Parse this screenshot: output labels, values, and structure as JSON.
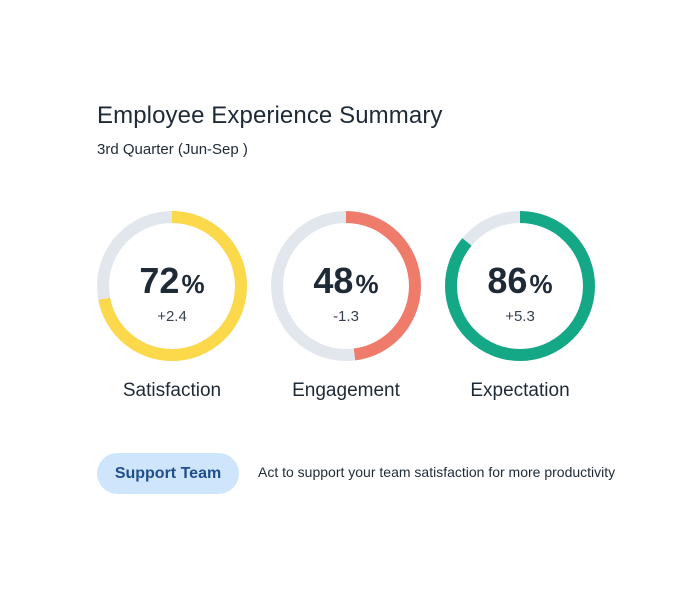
{
  "header": {
    "title": "Employee Experience Summary",
    "subtitle": "3rd Quarter (Jun-Sep )"
  },
  "metrics": [
    {
      "label": "Satisfaction",
      "value": "72",
      "unit": "%",
      "delta": "+2.4",
      "progress": 0.72,
      "color": "#fcd94a"
    },
    {
      "label": "Engagement",
      "value": "48",
      "unit": "%",
      "delta": "-1.3",
      "progress": 0.48,
      "color": "#ef7b6b"
    },
    {
      "label": "Expectation",
      "value": "86",
      "unit": "%",
      "delta": "+5.3",
      "progress": 0.86,
      "color": "#15a886"
    }
  ],
  "track_color": "#e2e7ee",
  "action": {
    "button_label": "Support Team",
    "text": "Act to support your team satisfaction for more productivity"
  }
}
